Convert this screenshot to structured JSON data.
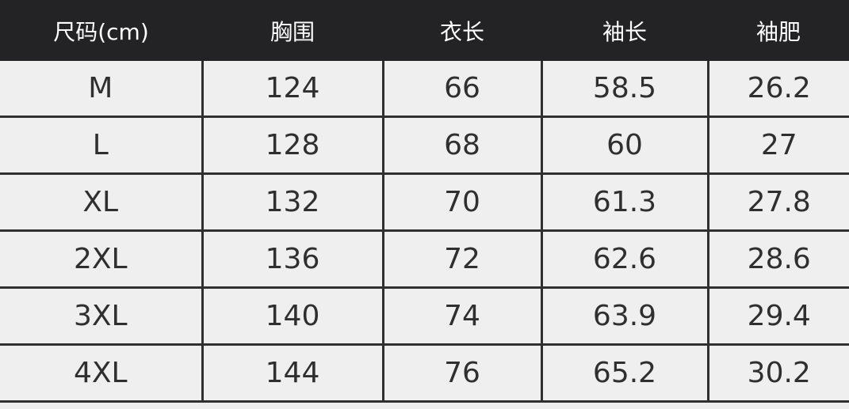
{
  "table": {
    "headers": [
      "尺码(cm)",
      "胸围",
      "衣长",
      "袖长",
      "袖肥"
    ],
    "rows": [
      [
        "M",
        "124",
        "66",
        "58.5",
        "26.2"
      ],
      [
        "L",
        "128",
        "68",
        "60",
        "27"
      ],
      [
        "XL",
        "132",
        "70",
        "61.3",
        "27.8"
      ],
      [
        "2XL",
        "136",
        "72",
        "62.6",
        "28.6"
      ],
      [
        "3XL",
        "140",
        "74",
        "63.9",
        "29.4"
      ],
      [
        "4XL",
        "144",
        "76",
        "65.2",
        "30.2"
      ]
    ]
  },
  "colors": {
    "header_bg": "#232326",
    "header_text": "#ffffff",
    "cell_bg": "#efefef",
    "grid": "#303030"
  }
}
